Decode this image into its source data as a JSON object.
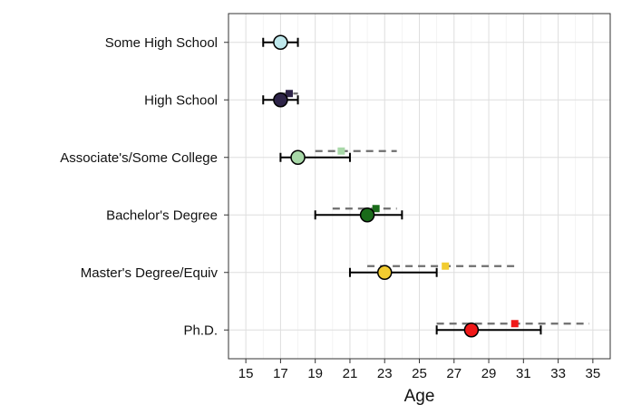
{
  "chart_data": {
    "type": "scatter",
    "xlabel": "Age",
    "xlim": [
      14,
      36
    ],
    "xticks": [
      15,
      17,
      19,
      21,
      23,
      25,
      27,
      29,
      31,
      33,
      35
    ],
    "grid": true,
    "categories": [
      "Some High School",
      "High School",
      "Associate's/Some College",
      "Bachelor's Degree",
      "Master's Degree/Equiv",
      "Ph.D."
    ],
    "series": [
      {
        "marker": "circle",
        "values": [
          17,
          17,
          18,
          22,
          23,
          28
        ],
        "lower": [
          16,
          16,
          17,
          19,
          21,
          26
        ],
        "upper": [
          18,
          18,
          21,
          24,
          26,
          32
        ],
        "colors": [
          "#bfe8ec",
          "#2e2448",
          "#a8d8a8",
          "#1a6b1a",
          "#f2cc30",
          "#f01818"
        ]
      },
      {
        "marker": "square",
        "dashed_range": true,
        "values": [
          null,
          17.5,
          20.5,
          22.5,
          26.5,
          30.5
        ],
        "lower": [
          null,
          17,
          19,
          20,
          22,
          26
        ],
        "upper": [
          null,
          18,
          23.7,
          23.7,
          30.7,
          34.8
        ],
        "colors": [
          "#bfe8ec",
          "#2e2448",
          "#a8d8a8",
          "#1a6b1a",
          "#f2cc30",
          "#f01818"
        ]
      }
    ]
  }
}
